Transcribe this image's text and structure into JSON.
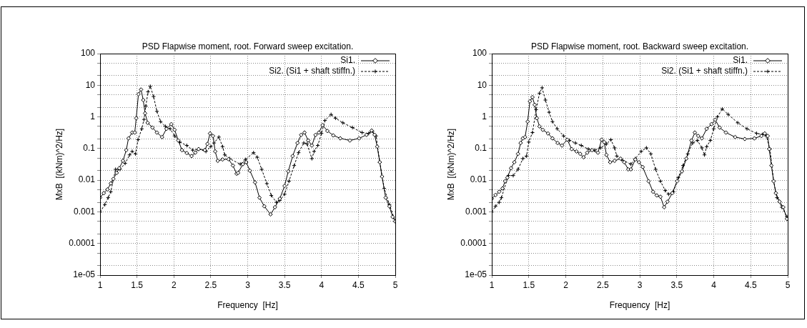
{
  "chart_data": [
    {
      "type": "line",
      "title": "PSD Flapwise moment, root. Forward sweep excitation.",
      "xlabel": "Frequency  [Hz]",
      "ylabel": "MxB  [(kNm)^2/Hz]",
      "xlim": [
        1,
        5
      ],
      "xticks": [
        1,
        1.5,
        2,
        2.5,
        3,
        3.5,
        4,
        4.5,
        5
      ],
      "ylim": [
        1e-05,
        100
      ],
      "yticks": [
        {
          "value": 1e-05,
          "label": "1e-05"
        },
        {
          "value": 2e-05,
          "label": null
        },
        {
          "value": 5e-05,
          "label": null
        },
        0.0001,
        {
          "value": 0.0002,
          "label": null
        },
        {
          "value": 0.0005,
          "label": null
        },
        0.001,
        {
          "value": 0.002,
          "label": null
        },
        {
          "value": 0.005,
          "label": null
        },
        0.01,
        {
          "value": 0.02,
          "label": null
        },
        {
          "value": 0.05,
          "label": null
        },
        0.1,
        {
          "value": 0.2,
          "label": null
        },
        {
          "value": 0.5,
          "label": null
        },
        1,
        {
          "value": 2,
          "label": null
        },
        {
          "value": 5,
          "label": null
        },
        10,
        {
          "value": 20,
          "label": null
        },
        {
          "value": 50,
          "label": null
        },
        100
      ],
      "log": "y",
      "grid": true,
      "legend": "top right",
      "series": [
        {
          "name": "Si1.",
          "color": "#000000",
          "marker": "diamond",
          "line_style": "solid",
          "x": [
            1.0,
            1.05,
            1.1,
            1.145,
            1.18,
            1.225,
            1.26,
            1.31,
            1.355,
            1.385,
            1.435,
            1.47,
            1.49,
            1.52,
            1.555,
            1.585,
            1.61,
            1.645,
            1.71,
            1.77,
            1.84,
            1.9,
            1.965,
            2.01,
            2.06,
            2.11,
            2.175,
            2.24,
            2.29,
            2.335,
            2.42,
            2.455,
            2.49,
            2.53,
            2.56,
            2.595,
            2.66,
            2.74,
            2.8,
            2.85,
            2.87,
            2.935,
            2.98,
            3.03,
            3.1,
            3.16,
            3.225,
            3.31,
            3.37,
            3.435,
            3.5,
            3.55,
            3.61,
            3.675,
            3.725,
            3.77,
            3.82,
            3.87,
            3.92,
            3.965,
            4.015,
            4.08,
            4.16,
            4.255,
            4.385,
            4.51,
            4.61,
            4.68,
            4.72,
            4.755,
            4.79,
            4.82,
            4.87,
            4.92,
            4.965,
            5.0
          ],
          "values": [
            0.0028,
            0.0039,
            0.0051,
            0.0079,
            0.011,
            0.017,
            0.024,
            0.041,
            0.089,
            0.21,
            0.32,
            0.32,
            0.91,
            5.2,
            7.3,
            3.4,
            1.3,
            0.65,
            0.46,
            0.32,
            0.23,
            0.42,
            0.59,
            0.39,
            0.18,
            0.089,
            0.072,
            0.058,
            0.074,
            0.096,
            0.089,
            0.14,
            0.3,
            0.25,
            0.081,
            0.041,
            0.045,
            0.046,
            0.029,
            0.016,
            0.017,
            0.032,
            0.037,
            0.02,
            0.0085,
            0.0028,
            0.0015,
            0.00083,
            0.0014,
            0.0026,
            0.0066,
            0.019,
            0.058,
            0.15,
            0.27,
            0.32,
            0.18,
            0.125,
            0.27,
            0.32,
            0.55,
            0.36,
            0.26,
            0.21,
            0.18,
            0.21,
            0.27,
            0.37,
            0.27,
            0.115,
            0.037,
            0.013,
            0.0028,
            0.0015,
            0.00069,
            0.0005
          ]
        },
        {
          "name": "Si2. (Si1 + shaft stiffn.)",
          "color": "#000000",
          "marker": "cross",
          "line_style": "dashed",
          "x": [
            1.0,
            1.065,
            1.11,
            1.145,
            1.21,
            1.27,
            1.34,
            1.4,
            1.435,
            1.48,
            1.515,
            1.565,
            1.595,
            1.62,
            1.65,
            1.68,
            1.725,
            1.77,
            1.82,
            1.885,
            1.95,
            2.01,
            2.08,
            2.175,
            2.255,
            2.335,
            2.435,
            2.5,
            2.545,
            2.61,
            2.66,
            2.69,
            2.755,
            2.9,
            2.97,
            3.08,
            3.13,
            3.19,
            3.26,
            3.32,
            3.39,
            3.435,
            3.5,
            3.56,
            3.63,
            3.69,
            3.76,
            3.805,
            3.87,
            3.9,
            3.95,
            4.0,
            4.047,
            4.13,
            4.19,
            4.29,
            4.42,
            4.55,
            4.64,
            4.69,
            4.74,
            4.79,
            4.85,
            4.92,
            5.0
          ],
          "values": [
            0.00098,
            0.0017,
            0.0028,
            0.0043,
            0.022,
            0.022,
            0.034,
            0.063,
            0.081,
            0.068,
            0.19,
            0.42,
            0.83,
            2.2,
            6.2,
            9.2,
            4.4,
            1.5,
            0.71,
            0.5,
            0.42,
            0.25,
            0.16,
            0.125,
            0.089,
            0.096,
            0.081,
            0.115,
            0.15,
            0.23,
            0.115,
            0.063,
            0.048,
            0.032,
            0.045,
            0.074,
            0.053,
            0.022,
            0.0078,
            0.0033,
            0.002,
            0.0023,
            0.0036,
            0.0093,
            0.029,
            0.074,
            0.15,
            0.14,
            0.048,
            0.081,
            0.125,
            0.3,
            0.77,
            1.19,
            0.91,
            0.65,
            0.46,
            0.32,
            0.3,
            0.35,
            0.25,
            0.037,
            0.0055,
            0.0017,
            0.0005
          ]
        }
      ]
    },
    {
      "type": "line",
      "title": "PSD Flapwise moment, root. Backward sweep excitation.",
      "xlabel": "Frequency  [Hz]",
      "ylabel": "MxB  [(kNm)^2/Hz]",
      "xlim": [
        1,
        5
      ],
      "xticks": [
        1,
        1.5,
        2,
        2.5,
        3,
        3.5,
        4,
        4.5,
        5
      ],
      "ylim": [
        1e-05,
        100
      ],
      "yticks": [
        {
          "value": 1e-05,
          "label": "1e-05"
        },
        {
          "value": 2e-05,
          "label": null
        },
        {
          "value": 5e-05,
          "label": null
        },
        0.0001,
        {
          "value": 0.0002,
          "label": null
        },
        {
          "value": 0.0005,
          "label": null
        },
        0.001,
        {
          "value": 0.002,
          "label": null
        },
        {
          "value": 0.005,
          "label": null
        },
        0.01,
        {
          "value": 0.02,
          "label": null
        },
        {
          "value": 0.05,
          "label": null
        },
        0.1,
        {
          "value": 0.2,
          "label": null
        },
        {
          "value": 0.5,
          "label": null
        },
        1,
        {
          "value": 2,
          "label": null
        },
        {
          "value": 5,
          "label": null
        },
        10,
        {
          "value": 20,
          "label": null
        },
        {
          "value": 50,
          "label": null
        },
        100
      ],
      "log": "y",
      "grid": true,
      "legend": "top right",
      "series": [
        {
          "name": "Si1.",
          "color": "#000000",
          "marker": "diamond",
          "line_style": "solid",
          "x": [
            1.0,
            1.05,
            1.1,
            1.145,
            1.18,
            1.21,
            1.26,
            1.305,
            1.355,
            1.39,
            1.42,
            1.45,
            1.485,
            1.515,
            1.55,
            1.58,
            1.61,
            1.645,
            1.69,
            1.76,
            1.82,
            1.89,
            1.95,
            2.02,
            2.08,
            2.145,
            2.195,
            2.24,
            2.29,
            2.355,
            2.435,
            2.485,
            2.52,
            2.55,
            2.6,
            2.66,
            2.74,
            2.79,
            2.845,
            2.88,
            2.94,
            2.99,
            3.04,
            3.12,
            3.18,
            3.23,
            3.28,
            3.33,
            3.375,
            3.44,
            3.505,
            3.57,
            3.63,
            3.7,
            3.745,
            3.79,
            3.84,
            3.905,
            3.97,
            4.02,
            4.08,
            4.165,
            4.29,
            4.42,
            4.55,
            4.645,
            4.69,
            4.73,
            4.75,
            4.78,
            4.81,
            4.84,
            4.89,
            4.94,
            4.99
          ],
          "values": [
            0.0026,
            0.0034,
            0.0043,
            0.0055,
            0.0093,
            0.012,
            0.024,
            0.037,
            0.068,
            0.15,
            0.21,
            0.23,
            0.71,
            3.1,
            4.2,
            2.4,
            0.91,
            0.5,
            0.39,
            0.3,
            0.21,
            0.15,
            0.125,
            0.19,
            0.096,
            0.081,
            0.068,
            0.053,
            0.074,
            0.089,
            0.074,
            0.19,
            0.16,
            0.063,
            0.037,
            0.041,
            0.048,
            0.037,
            0.022,
            0.022,
            0.045,
            0.037,
            0.026,
            0.0093,
            0.0043,
            0.0033,
            0.003,
            0.0014,
            0.0021,
            0.0039,
            0.0093,
            0.019,
            0.048,
            0.18,
            0.32,
            0.25,
            0.21,
            0.42,
            0.59,
            0.81,
            0.46,
            0.32,
            0.23,
            0.2,
            0.21,
            0.25,
            0.3,
            0.25,
            0.096,
            0.029,
            0.0093,
            0.0039,
            0.0021,
            0.0014,
            0.0006
          ]
        },
        {
          "name": "Si2. (Si1 + shaft stiffn.)",
          "color": "#000000",
          "marker": "cross",
          "line_style": "dashed",
          "x": [
            1.0,
            1.05,
            1.1,
            1.13,
            1.225,
            1.29,
            1.355,
            1.42,
            1.47,
            1.5,
            1.55,
            1.6,
            1.645,
            1.68,
            1.725,
            1.775,
            1.82,
            1.885,
            1.97,
            2.05,
            2.13,
            2.21,
            2.305,
            2.39,
            2.47,
            2.55,
            2.61,
            2.66,
            2.69,
            2.755,
            2.88,
            2.94,
            3.02,
            3.09,
            3.15,
            3.215,
            3.28,
            3.345,
            3.39,
            3.455,
            3.52,
            3.585,
            3.65,
            3.715,
            3.78,
            3.84,
            3.875,
            3.905,
            3.955,
            4.0,
            4.05,
            4.115,
            4.195,
            4.325,
            4.45,
            4.58,
            4.66,
            4.71,
            4.76,
            4.81,
            4.855,
            4.92,
            4.99
          ],
          "values": [
            0.00098,
            0.0015,
            0.002,
            0.0028,
            0.014,
            0.014,
            0.022,
            0.048,
            0.058,
            0.16,
            0.32,
            1.7,
            5.6,
            8.3,
            3.4,
            1.4,
            0.71,
            0.42,
            0.25,
            0.18,
            0.15,
            0.125,
            0.096,
            0.089,
            0.105,
            0.14,
            0.19,
            0.105,
            0.058,
            0.045,
            0.032,
            0.048,
            0.081,
            0.105,
            0.068,
            0.022,
            0.0093,
            0.0047,
            0.0036,
            0.0043,
            0.012,
            0.029,
            0.068,
            0.15,
            0.18,
            0.105,
            0.063,
            0.115,
            0.18,
            0.42,
            1.0,
            1.78,
            1.2,
            0.65,
            0.42,
            0.3,
            0.28,
            0.25,
            0.096,
            0.0093,
            0.0028,
            0.0014,
            0.0007
          ]
        }
      ]
    }
  ]
}
